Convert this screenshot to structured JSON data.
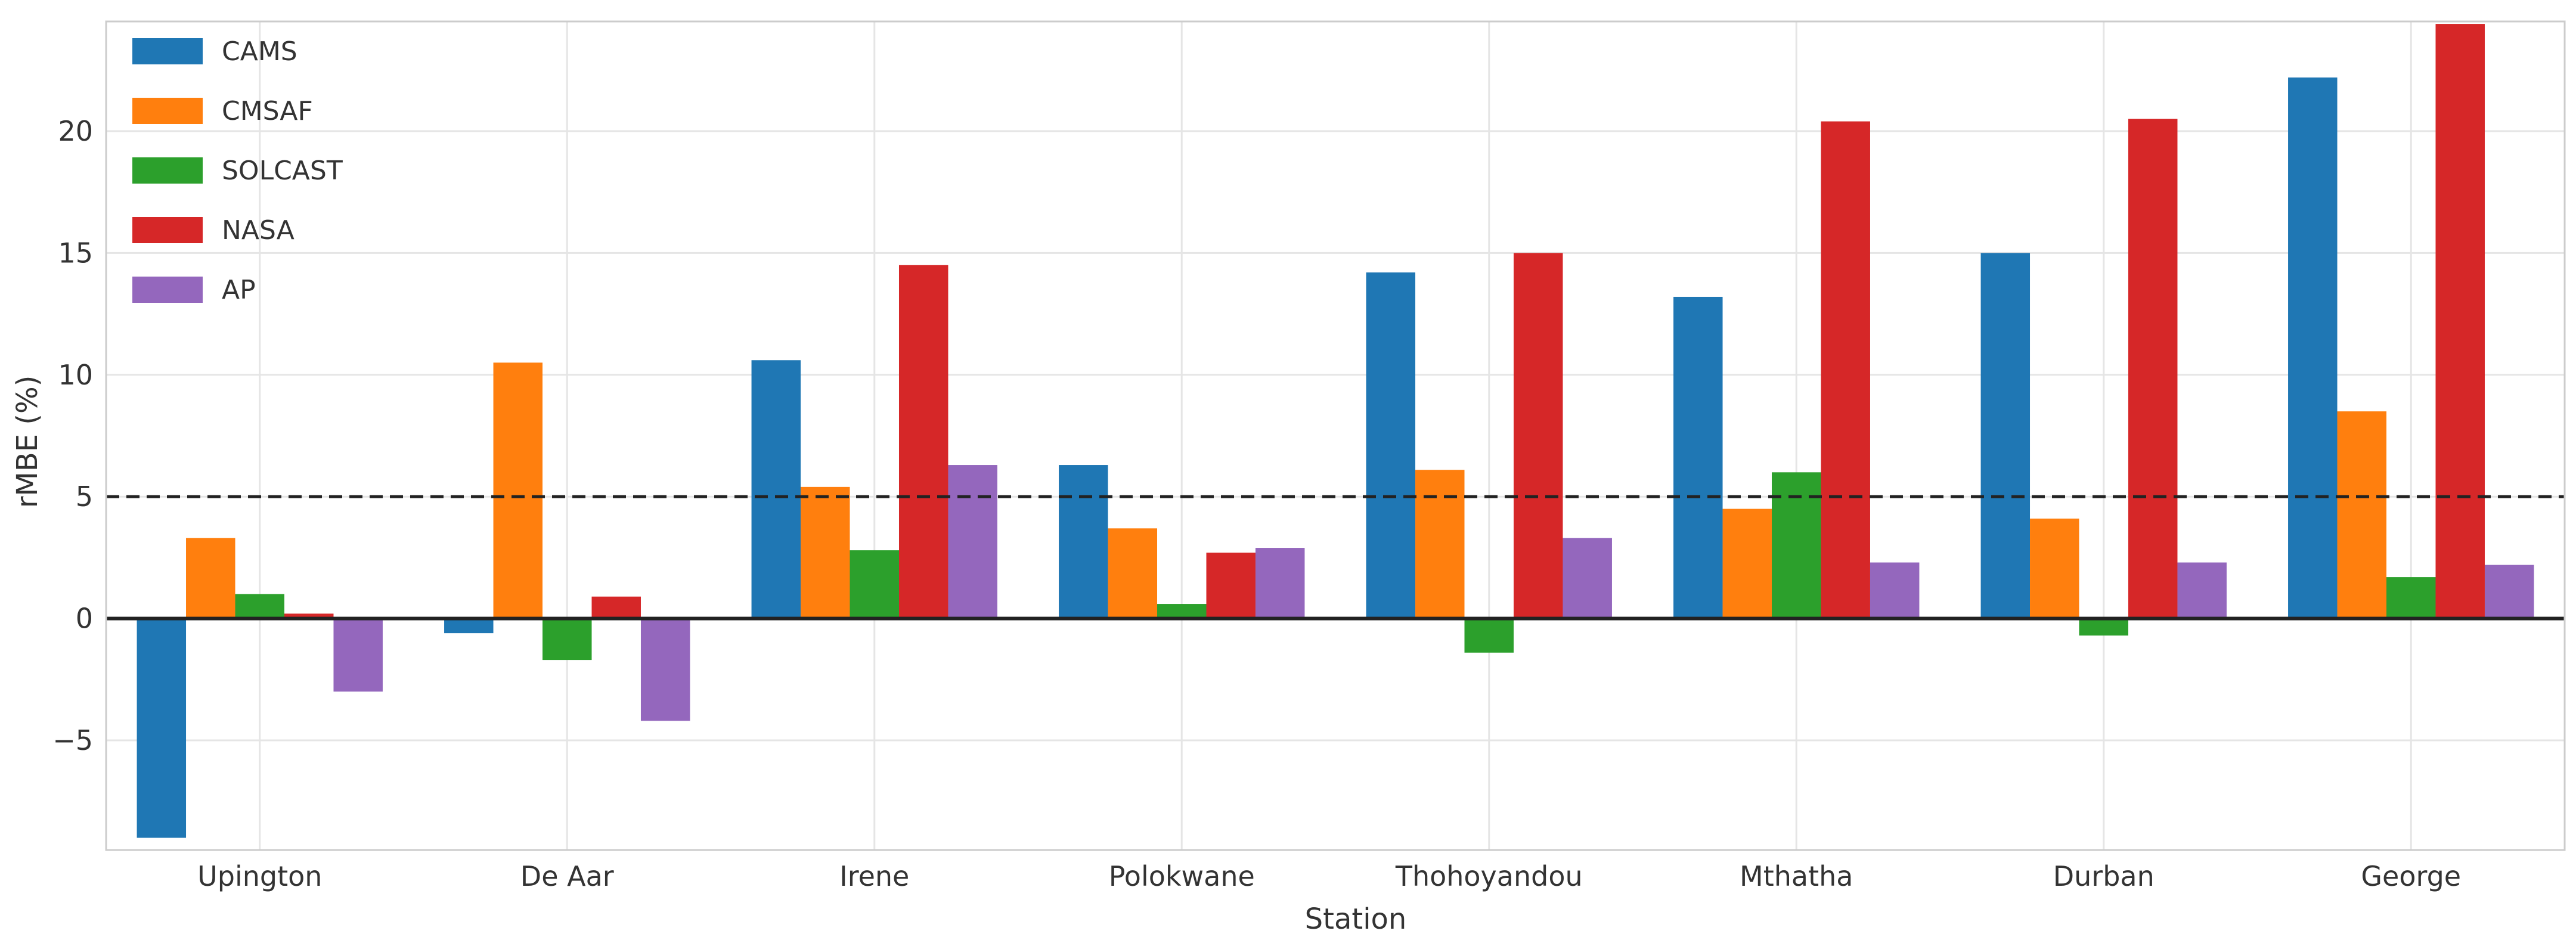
{
  "chart_data": {
    "type": "bar",
    "title": "",
    "xlabel": "Station",
    "ylabel": "rMBE (%)",
    "ylim": [
      -9.5,
      24.5
    ],
    "yticks": [
      -5,
      0,
      5,
      10,
      15,
      20
    ],
    "ytick_labels": [
      "−5",
      "0",
      "5",
      "10",
      "15",
      "20"
    ],
    "reference_line": {
      "value": 5,
      "style": "dashed"
    },
    "zero_line": true,
    "grid": true,
    "legend_position": "top-left",
    "categories": [
      "Upington",
      "De Aar",
      "Irene",
      "Polokwane",
      "Thohoyandou",
      "Mthatha",
      "Durban",
      "George"
    ],
    "series": [
      {
        "name": "CAMS",
        "color": "#1f77b4",
        "values": [
          -9.0,
          -0.6,
          10.6,
          6.3,
          14.2,
          13.2,
          15.0,
          22.2
        ]
      },
      {
        "name": "CMSAF",
        "color": "#ff7f0e",
        "values": [
          3.3,
          10.5,
          5.4,
          3.7,
          6.1,
          4.5,
          4.1,
          8.5
        ]
      },
      {
        "name": "SOLCAST",
        "color": "#2ca02c",
        "values": [
          1.0,
          -1.7,
          2.8,
          0.6,
          -1.4,
          6.0,
          -0.7,
          1.7
        ]
      },
      {
        "name": "NASA",
        "color": "#d62728",
        "values": [
          0.2,
          0.9,
          14.5,
          2.7,
          15.0,
          20.4,
          20.5,
          24.4
        ]
      },
      {
        "name": "AP",
        "color": "#9467bd",
        "values": [
          -3.0,
          -4.2,
          6.3,
          2.9,
          3.3,
          2.3,
          2.3,
          2.2
        ]
      }
    ]
  }
}
